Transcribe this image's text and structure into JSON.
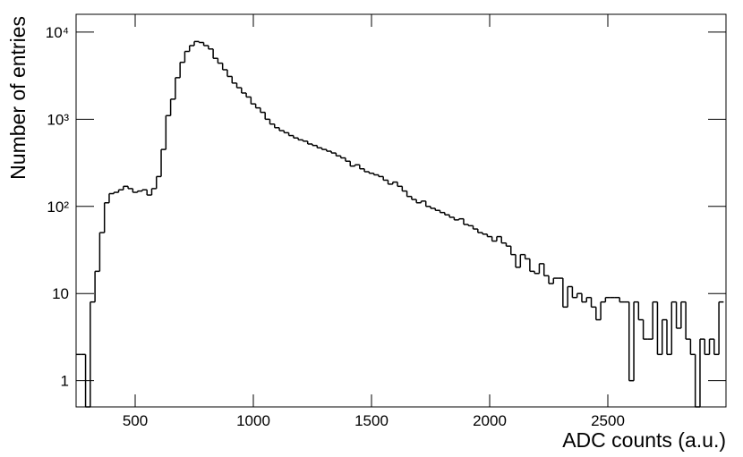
{
  "chart_data": {
    "type": "histogram",
    "xlabel": "ADC counts (a.u.)",
    "ylabel": "Number of entries",
    "color": "#000000",
    "log_y": true,
    "xlim": [
      250,
      3000
    ],
    "ylim": [
      0.5,
      16000
    ],
    "xticks": [
      500,
      1000,
      1500,
      2000,
      2500
    ],
    "yticks": [
      1,
      10,
      {
        "value": 100,
        "label": "10²"
      },
      {
        "value": 1000,
        "label": "10³"
      },
      {
        "value": 10000,
        "label": "10⁴"
      }
    ],
    "bins": [
      250,
      270,
      290,
      310,
      330,
      350,
      370,
      390,
      410,
      430,
      450,
      470,
      490,
      510,
      530,
      550,
      570,
      590,
      610,
      630,
      650,
      670,
      690,
      710,
      730,
      750,
      770,
      790,
      810,
      830,
      850,
      870,
      890,
      910,
      930,
      950,
      970,
      990,
      1010,
      1030,
      1050,
      1070,
      1090,
      1110,
      1130,
      1150,
      1170,
      1190,
      1210,
      1230,
      1250,
      1270,
      1290,
      1310,
      1330,
      1350,
      1370,
      1390,
      1410,
      1430,
      1450,
      1470,
      1490,
      1510,
      1530,
      1550,
      1570,
      1590,
      1610,
      1630,
      1650,
      1670,
      1690,
      1710,
      1730,
      1750,
      1770,
      1790,
      1810,
      1830,
      1850,
      1870,
      1890,
      1910,
      1930,
      1950,
      1970,
      1990,
      2010,
      2030,
      2050,
      2070,
      2090,
      2110,
      2130,
      2150,
      2170,
      2190,
      2210,
      2230,
      2250,
      2270,
      2290,
      2310,
      2330,
      2350,
      2370,
      2390,
      2410,
      2430,
      2450,
      2470,
      2490,
      2510,
      2530,
      2550,
      2570,
      2590,
      2610,
      2630,
      2650,
      2670,
      2690,
      2710,
      2730,
      2750,
      2770,
      2790,
      2810,
      2830,
      2850,
      2870,
      2890,
      2910,
      2930,
      2950,
      2970,
      2990
    ],
    "values": [
      2,
      2,
      0,
      8,
      18,
      50,
      110,
      140,
      145,
      155,
      170,
      160,
      145,
      150,
      155,
      135,
      160,
      220,
      450,
      1100,
      1700,
      3000,
      4500,
      6000,
      7000,
      7800,
      7600,
      7000,
      6400,
      5000,
      4400,
      3700,
      3100,
      2600,
      2300,
      2000,
      1800,
      1500,
      1350,
      1200,
      1000,
      880,
      800,
      740,
      700,
      650,
      610,
      580,
      560,
      520,
      500,
      470,
      450,
      430,
      410,
      380,
      360,
      330,
      290,
      300,
      270,
      250,
      240,
      230,
      220,
      200,
      180,
      190,
      170,
      150,
      130,
      120,
      110,
      115,
      100,
      95,
      90,
      85,
      80,
      75,
      70,
      72,
      62,
      60,
      55,
      50,
      48,
      45,
      40,
      45,
      38,
      35,
      28,
      20,
      28,
      25,
      18,
      17,
      22,
      16,
      13,
      15,
      15,
      7,
      12,
      9,
      10,
      8,
      9,
      7,
      5,
      8,
      9,
      9,
      9,
      8,
      8,
      1,
      8,
      5,
      3,
      3,
      8,
      2,
      5,
      2,
      8,
      4,
      8,
      3,
      2,
      0,
      3,
      2,
      3,
      2,
      8
    ]
  }
}
